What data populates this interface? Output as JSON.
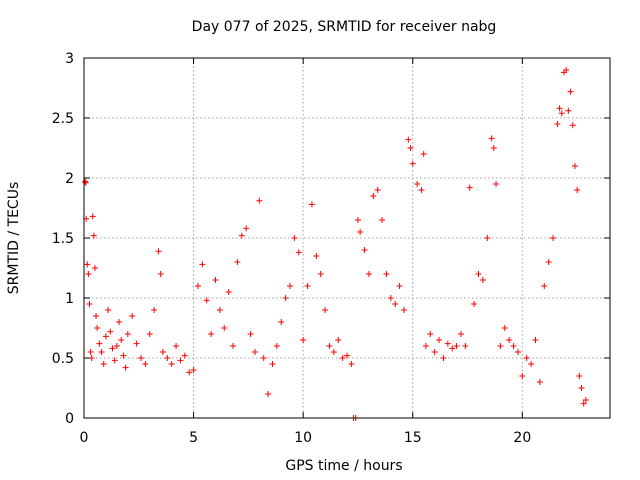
{
  "chart_data": {
    "type": "scatter",
    "title": "Day 077 of 2025, SRMTID for receiver nabg",
    "xlabel": "GPS time / hours",
    "ylabel": "SRMTID / TECUs",
    "xlim": [
      0,
      24
    ],
    "ylim": [
      0,
      3
    ],
    "x_ticks": [
      0,
      5,
      10,
      15,
      20
    ],
    "x_tick_labels": [
      "0",
      "5",
      "10",
      "15",
      "20"
    ],
    "y_ticks": [
      0,
      0.5,
      1,
      1.5,
      2,
      2.5,
      3
    ],
    "y_tick_labels": [
      "0",
      "0.5",
      "1",
      "1.5",
      "2",
      "2.5",
      "3"
    ],
    "grid": true,
    "marker": "+",
    "color": "#ff0000",
    "series": [
      {
        "name": "SRMTID",
        "points": [
          [
            0.05,
            1.97
          ],
          [
            0.08,
            1.96
          ],
          [
            0.1,
            1.66
          ],
          [
            0.15,
            1.28
          ],
          [
            0.2,
            1.2
          ],
          [
            0.25,
            0.95
          ],
          [
            0.3,
            0.55
          ],
          [
            0.35,
            0.5
          ],
          [
            0.4,
            1.68
          ],
          [
            0.45,
            1.52
          ],
          [
            0.5,
            1.25
          ],
          [
            0.55,
            0.85
          ],
          [
            0.6,
            0.75
          ],
          [
            0.7,
            0.62
          ],
          [
            0.8,
            0.55
          ],
          [
            0.9,
            0.45
          ],
          [
            1.0,
            0.68
          ],
          [
            1.1,
            0.9
          ],
          [
            1.2,
            0.72
          ],
          [
            1.3,
            0.58
          ],
          [
            1.4,
            0.48
          ],
          [
            1.5,
            0.6
          ],
          [
            1.6,
            0.8
          ],
          [
            1.7,
            0.65
          ],
          [
            1.8,
            0.52
          ],
          [
            1.9,
            0.42
          ],
          [
            2.0,
            0.7
          ],
          [
            2.2,
            0.85
          ],
          [
            2.4,
            0.62
          ],
          [
            2.6,
            0.5
          ],
          [
            2.8,
            0.45
          ],
          [
            3.0,
            0.7
          ],
          [
            3.2,
            0.9
          ],
          [
            3.4,
            1.39
          ],
          [
            3.5,
            1.2
          ],
          [
            3.6,
            0.55
          ],
          [
            3.8,
            0.5
          ],
          [
            4.0,
            0.45
          ],
          [
            4.2,
            0.6
          ],
          [
            4.4,
            0.48
          ],
          [
            4.6,
            0.52
          ],
          [
            4.8,
            0.38
          ],
          [
            5.0,
            0.4
          ],
          [
            5.2,
            1.1
          ],
          [
            5.4,
            1.28
          ],
          [
            5.6,
            0.98
          ],
          [
            5.8,
            0.7
          ],
          [
            6.0,
            1.15
          ],
          [
            6.2,
            0.9
          ],
          [
            6.4,
            0.75
          ],
          [
            6.6,
            1.05
          ],
          [
            6.8,
            0.6
          ],
          [
            7.0,
            1.3
          ],
          [
            7.2,
            1.52
          ],
          [
            7.4,
            1.58
          ],
          [
            7.6,
            0.7
          ],
          [
            7.8,
            0.55
          ],
          [
            8.0,
            1.81
          ],
          [
            8.2,
            0.5
          ],
          [
            8.4,
            0.2
          ],
          [
            8.6,
            0.45
          ],
          [
            8.8,
            0.6
          ],
          [
            9.0,
            0.8
          ],
          [
            9.2,
            1.0
          ],
          [
            9.4,
            1.1
          ],
          [
            9.6,
            1.5
          ],
          [
            9.8,
            1.38
          ],
          [
            10.0,
            0.65
          ],
          [
            10.2,
            1.1
          ],
          [
            10.4,
            1.78
          ],
          [
            10.6,
            1.35
          ],
          [
            10.8,
            1.2
          ],
          [
            11.0,
            0.9
          ],
          [
            11.2,
            0.6
          ],
          [
            11.4,
            0.55
          ],
          [
            11.6,
            0.65
          ],
          [
            11.8,
            0.5
          ],
          [
            12.0,
            0.52
          ],
          [
            12.2,
            0.45
          ],
          [
            12.3,
            0.0
          ],
          [
            12.4,
            0.0
          ],
          [
            12.5,
            1.65
          ],
          [
            12.6,
            1.55
          ],
          [
            12.8,
            1.4
          ],
          [
            13.0,
            1.2
          ],
          [
            13.2,
            1.85
          ],
          [
            13.4,
            1.9
          ],
          [
            13.6,
            1.65
          ],
          [
            13.8,
            1.2
          ],
          [
            14.0,
            1.0
          ],
          [
            14.2,
            0.95
          ],
          [
            14.4,
            1.1
          ],
          [
            14.6,
            0.9
          ],
          [
            14.8,
            2.32
          ],
          [
            14.9,
            2.25
          ],
          [
            15.0,
            2.12
          ],
          [
            15.2,
            1.95
          ],
          [
            15.4,
            1.9
          ],
          [
            15.5,
            2.2
          ],
          [
            15.6,
            0.6
          ],
          [
            15.8,
            0.7
          ],
          [
            16.0,
            0.55
          ],
          [
            16.2,
            0.65
          ],
          [
            16.4,
            0.5
          ],
          [
            16.6,
            0.62
          ],
          [
            16.8,
            0.58
          ],
          [
            17.0,
            0.6
          ],
          [
            17.2,
            0.7
          ],
          [
            17.4,
            0.6
          ],
          [
            17.6,
            1.92
          ],
          [
            17.8,
            0.95
          ],
          [
            18.0,
            1.2
          ],
          [
            18.2,
            1.15
          ],
          [
            18.4,
            1.5
          ],
          [
            18.6,
            2.33
          ],
          [
            18.7,
            2.25
          ],
          [
            18.8,
            1.95
          ],
          [
            19.0,
            0.6
          ],
          [
            19.2,
            0.75
          ],
          [
            19.4,
            0.65
          ],
          [
            19.6,
            0.6
          ],
          [
            19.8,
            0.55
          ],
          [
            20.0,
            0.35
          ],
          [
            20.2,
            0.5
          ],
          [
            20.4,
            0.45
          ],
          [
            20.6,
            0.65
          ],
          [
            20.8,
            0.3
          ],
          [
            21.0,
            1.1
          ],
          [
            21.2,
            1.3
          ],
          [
            21.4,
            1.5
          ],
          [
            21.6,
            2.45
          ],
          [
            21.7,
            2.58
          ],
          [
            21.8,
            2.54
          ],
          [
            21.9,
            2.88
          ],
          [
            22.0,
            2.9
          ],
          [
            22.1,
            2.56
          ],
          [
            22.2,
            2.72
          ],
          [
            22.3,
            2.44
          ],
          [
            22.4,
            2.1
          ],
          [
            22.5,
            1.9
          ],
          [
            22.6,
            0.35
          ],
          [
            22.7,
            0.25
          ],
          [
            22.8,
            0.12
          ],
          [
            22.9,
            0.15
          ]
        ]
      }
    ]
  }
}
